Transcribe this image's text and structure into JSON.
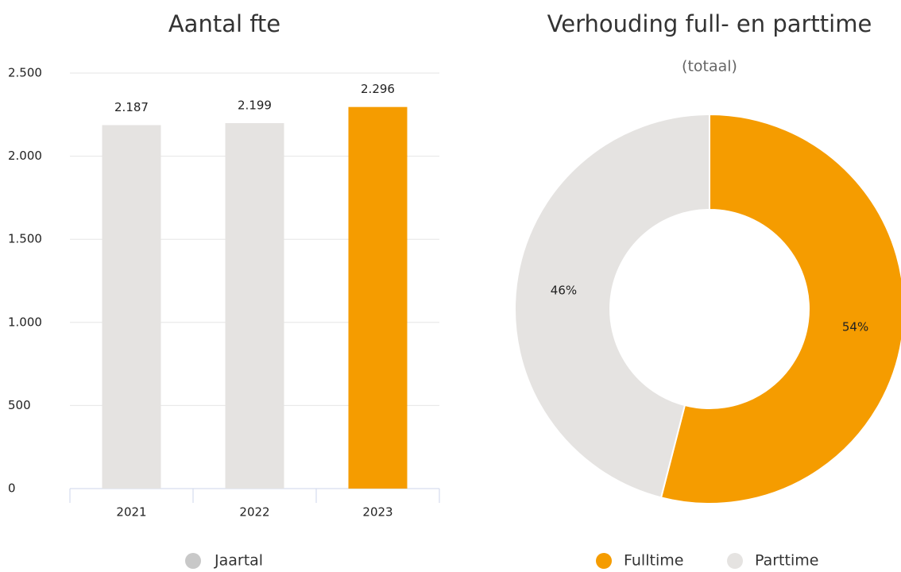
{
  "chart_data": [
    {
      "type": "bar",
      "title": "Aantal fte",
      "categories": [
        "2021",
        "2022",
        "2023"
      ],
      "series": [
        {
          "name": "Jaartal",
          "color": "#c8c8c8",
          "values": [
            2187,
            2199,
            2296
          ],
          "value_labels": [
            "2.187",
            "2.199",
            "2.296"
          ]
        }
      ],
      "colors": [
        "#e5e3e1",
        "#e5e3e1",
        "#f59c00"
      ],
      "ylim": [
        0,
        2500
      ],
      "yticks": [
        0,
        {
          "value": 500,
          "label": "500"
        },
        {
          "value": 1000,
          "label": "1.000"
        },
        {
          "value": 1500,
          "label": "1.500"
        },
        {
          "value": 2000,
          "label": "2.000"
        },
        {
          "value": 2500,
          "label": "2.500"
        }
      ],
      "grid": true
    },
    {
      "type": "donut",
      "title": "Verhouding full- en parttime",
      "subtitle": "(totaal)",
      "categories": [
        "Fulltime",
        "Parttime"
      ],
      "values": [
        54,
        46
      ],
      "value_labels": [
        "54%",
        "46%"
      ],
      "colors": [
        "#f59c00",
        "#e5e3e1"
      ]
    }
  ]
}
